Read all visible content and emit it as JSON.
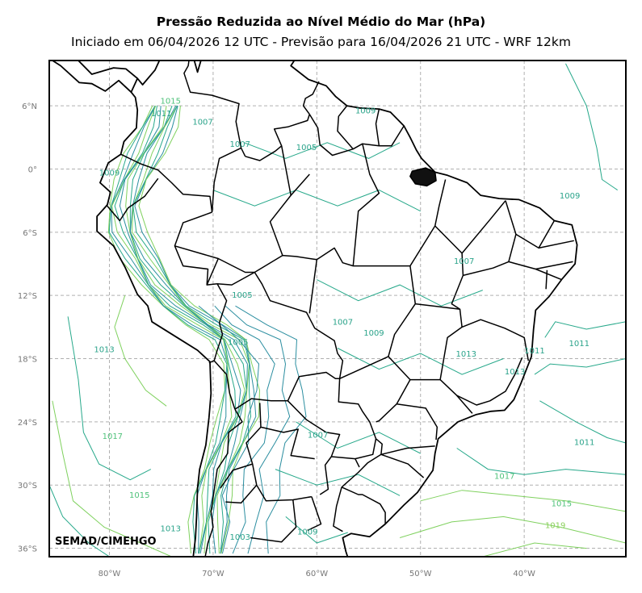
{
  "header": {
    "title": "Pressão Reduzida ao Nível Médio do Mar (hPa)",
    "subtitle": "Iniciado em 06/04/2026 12 UTC - Previsão para 16/04/2026 21 UTC - WRF 12km"
  },
  "map": {
    "lat_ticks": [
      "6°N",
      "0°",
      "6°S",
      "12°S",
      "18°S",
      "24°S",
      "30°S",
      "36°S"
    ],
    "lon_ticks": [
      "80°W",
      "70°W",
      "60°W",
      "50°W",
      "40°W"
    ],
    "lat_range": [
      -36.8,
      10.3
    ],
    "lon_range": [
      -85.8,
      -30.2
    ],
    "contour_labels": [
      {
        "text": "1015",
        "lon": -74.1,
        "lat": 6.2,
        "color": "#4fc27a"
      },
      {
        "text": "1011",
        "lon": -75.0,
        "lat": 5.0,
        "color": "#2aa38a"
      },
      {
        "text": "1007",
        "lon": -71.0,
        "lat": 4.2,
        "color": "#2aa38a"
      },
      {
        "text": "1009",
        "lon": -55.3,
        "lat": 5.3,
        "color": "#2aa38a"
      },
      {
        "text": "1007",
        "lon": -67.4,
        "lat": 2.1,
        "color": "#2aa38a"
      },
      {
        "text": "1005",
        "lon": -61.0,
        "lat": 1.8,
        "color": "#2aa38a"
      },
      {
        "text": "1009",
        "lon": -80.0,
        "lat": -0.6,
        "color": "#2aa38a"
      },
      {
        "text": "1009",
        "lon": -35.6,
        "lat": -2.8,
        "color": "#2aa38a"
      },
      {
        "text": "1007",
        "lon": -45.8,
        "lat": -9.0,
        "color": "#2aa38a"
      },
      {
        "text": "1005",
        "lon": -67.2,
        "lat": -12.2,
        "color": "#2aa38a"
      },
      {
        "text": "1007",
        "lon": -57.5,
        "lat": -14.8,
        "color": "#2aa38a"
      },
      {
        "text": "1009",
        "lon": -54.5,
        "lat": -15.8,
        "color": "#2aa38a"
      },
      {
        "text": "1005",
        "lon": -67.6,
        "lat": -16.7,
        "color": "#2aa38a"
      },
      {
        "text": "1013",
        "lon": -80.5,
        "lat": -17.4,
        "color": "#2aa38a"
      },
      {
        "text": "1013",
        "lon": -45.6,
        "lat": -17.8,
        "color": "#2aa38a"
      },
      {
        "text": "1011",
        "lon": -34.7,
        "lat": -16.8,
        "color": "#2aa38a"
      },
      {
        "text": "1011",
        "lon": -39.0,
        "lat": -17.5,
        "color": "#2aa38a"
      },
      {
        "text": "1013",
        "lon": -40.9,
        "lat": -19.5,
        "color": "#2aa38a"
      },
      {
        "text": "1007",
        "lon": -59.9,
        "lat": -25.5,
        "color": "#2aa38a"
      },
      {
        "text": "1017",
        "lon": -79.7,
        "lat": -25.6,
        "color": "#4fc27a"
      },
      {
        "text": "1011",
        "lon": -34.2,
        "lat": -26.2,
        "color": "#2aa38a"
      },
      {
        "text": "1017",
        "lon": -41.9,
        "lat": -29.4,
        "color": "#4fc27a"
      },
      {
        "text": "1015",
        "lon": -77.1,
        "lat": -31.2,
        "color": "#4fc27a"
      },
      {
        "text": "1015",
        "lon": -36.4,
        "lat": -32.0,
        "color": "#4fc27a"
      },
      {
        "text": "1013",
        "lon": -74.1,
        "lat": -34.4,
        "color": "#2aa38a"
      },
      {
        "text": "1009",
        "lon": -60.9,
        "lat": -34.7,
        "color": "#2aa38a"
      },
      {
        "text": "1019",
        "lon": -37.0,
        "lat": -34.1,
        "color": "#8ad05a"
      },
      {
        "text": "1003",
        "lon": -67.4,
        "lat": -35.2,
        "color": "#2aa38a"
      }
    ],
    "credit": "SEMAD/CIMEHGO",
    "colors": {
      "frame": "#000000",
      "grid": "#b0b0b0",
      "border": "#000000",
      "contour_low": "#2b8ea0",
      "contour_mid": "#26a88a",
      "contour_high": "#7fd15e"
    }
  }
}
